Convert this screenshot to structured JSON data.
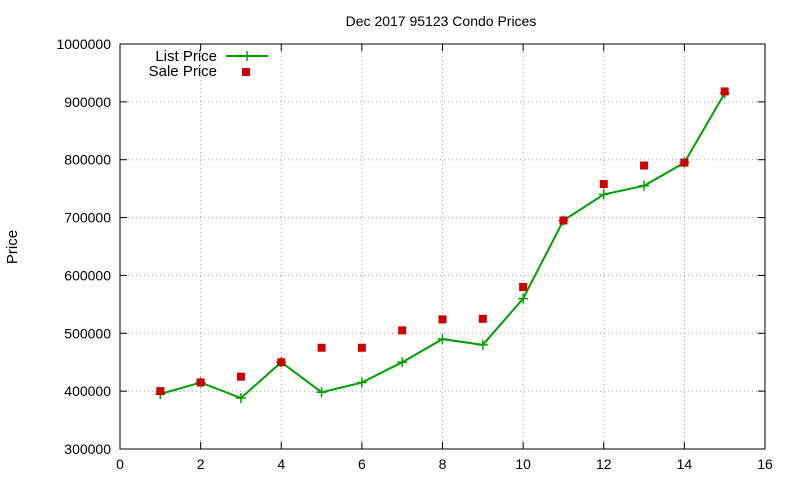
{
  "chart_data": {
    "type": "line",
    "title": "Dec 2017 95123 Condo Prices",
    "xlabel": "",
    "ylabel": "Price",
    "xlim": [
      0,
      16
    ],
    "ylim": [
      300000,
      1000000
    ],
    "xticks": [
      0,
      2,
      4,
      6,
      8,
      10,
      12,
      14,
      16
    ],
    "yticks": [
      300000,
      400000,
      500000,
      600000,
      700000,
      800000,
      900000,
      1000000
    ],
    "grid": true,
    "legend_position": "top-left",
    "series": [
      {
        "name": "List Price",
        "style": "line-with-plus-markers",
        "color": "#00a000",
        "x": [
          1,
          2,
          3,
          4,
          5,
          6,
          7,
          8,
          9,
          10,
          11,
          12,
          13,
          14,
          15
        ],
        "y": [
          395000,
          415000,
          388000,
          450000,
          398000,
          415000,
          450000,
          490000,
          480000,
          560000,
          695000,
          740000,
          755000,
          795000,
          915000
        ]
      },
      {
        "name": "Sale Price",
        "style": "square-markers",
        "color": "#cc0000",
        "x": [
          1,
          2,
          3,
          4,
          5,
          6,
          7,
          8,
          9,
          10,
          11,
          12,
          13,
          14,
          15
        ],
        "y": [
          400000,
          415000,
          425000,
          450000,
          475000,
          475000,
          505000,
          524000,
          525000,
          580000,
          695000,
          758000,
          790000,
          795000,
          918000
        ]
      }
    ]
  }
}
